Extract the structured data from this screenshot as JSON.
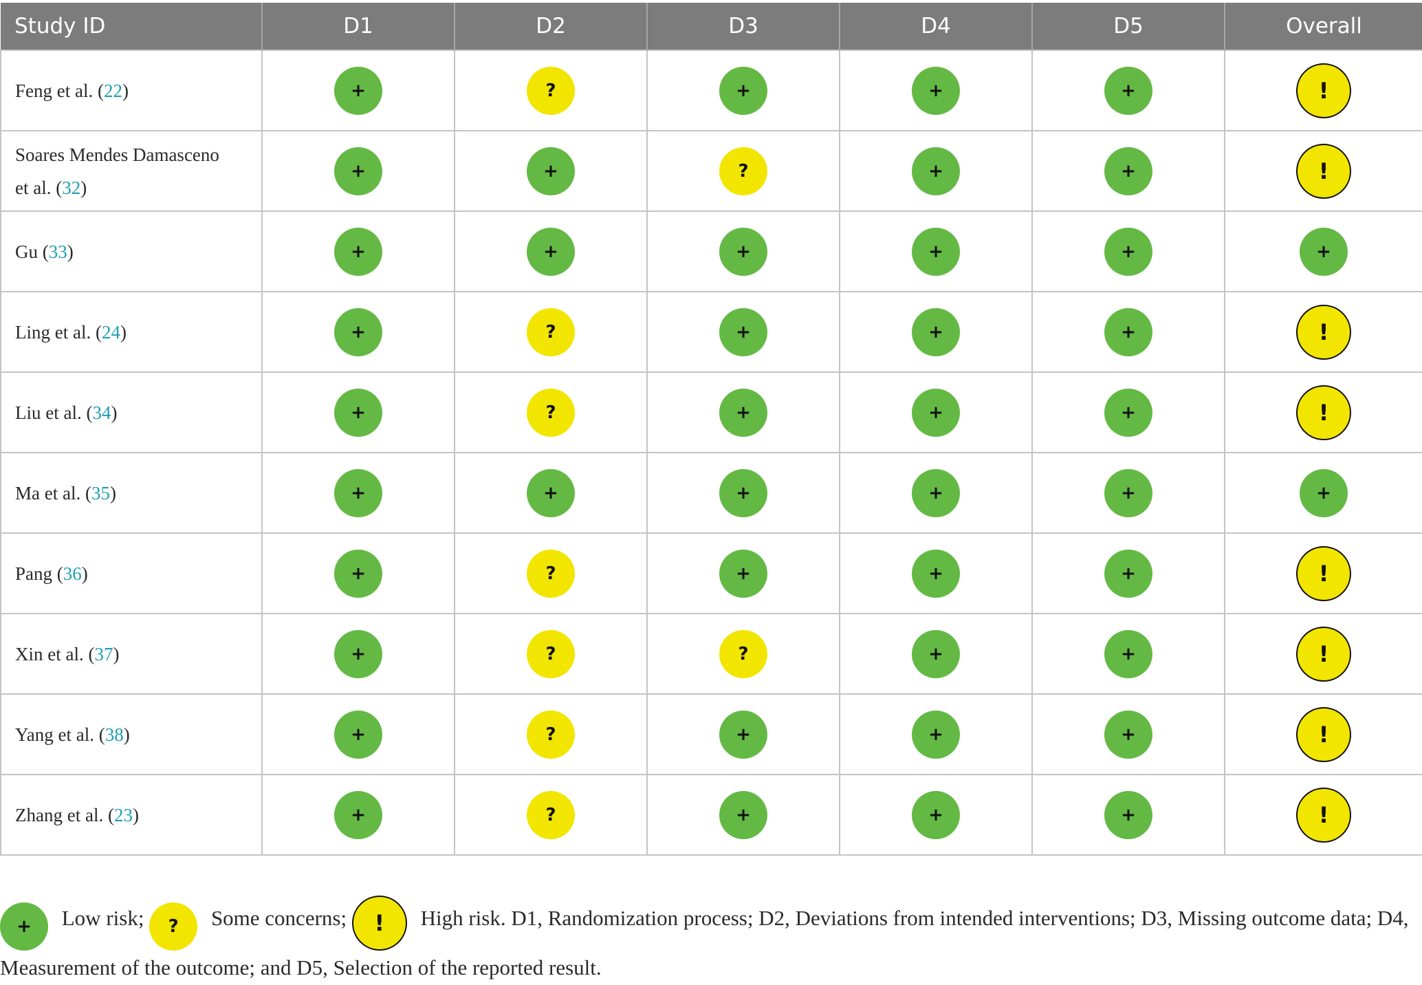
{
  "header": [
    "Study ID",
    "D1",
    "D2",
    "D3",
    "D4",
    "D5",
    "Overall"
  ],
  "glyphs": {
    "low": "+",
    "some": "?",
    "high": "!"
  },
  "colors": {
    "header_bg": "#7c7c7c",
    "low": "#63b944",
    "some": "#f2e500",
    "high": "#f2e500",
    "ref_link": "#1c9fb5"
  },
  "rows": [
    {
      "study_lines": [
        "Feng et al. ("
      ],
      "ref": "22",
      "tail": ")",
      "ratings": [
        "low",
        "some",
        "low",
        "low",
        "low",
        "high"
      ]
    },
    {
      "study_lines": [
        "Soares Mendes Damasceno",
        "et al. ("
      ],
      "ref": "32",
      "tail": ")",
      "ratings": [
        "low",
        "low",
        "some",
        "low",
        "low",
        "high"
      ]
    },
    {
      "study_lines": [
        "Gu ("
      ],
      "ref": "33",
      "tail": ")",
      "ratings": [
        "low",
        "low",
        "low",
        "low",
        "low",
        "low"
      ]
    },
    {
      "study_lines": [
        "Ling et al. ("
      ],
      "ref": "24",
      "tail": ")",
      "ratings": [
        "low",
        "some",
        "low",
        "low",
        "low",
        "high"
      ]
    },
    {
      "study_lines": [
        "Liu et al. ("
      ],
      "ref": "34",
      "tail": ")",
      "ratings": [
        "low",
        "some",
        "low",
        "low",
        "low",
        "high"
      ]
    },
    {
      "study_lines": [
        "Ma et al. ("
      ],
      "ref": "35",
      "tail": ")",
      "ratings": [
        "low",
        "low",
        "low",
        "low",
        "low",
        "low"
      ]
    },
    {
      "study_lines": [
        "Pang ("
      ],
      "ref": "36",
      "tail": ")",
      "ratings": [
        "low",
        "some",
        "low",
        "low",
        "low",
        "high"
      ]
    },
    {
      "study_lines": [
        "Xin et al. ("
      ],
      "ref": "37",
      "tail": ")",
      "ratings": [
        "low",
        "some",
        "some",
        "low",
        "low",
        "high"
      ]
    },
    {
      "study_lines": [
        "Yang et al. ("
      ],
      "ref": "38",
      "tail": ")",
      "ratings": [
        "low",
        "some",
        "low",
        "low",
        "low",
        "high"
      ]
    },
    {
      "study_lines": [
        "Zhang et al. ("
      ],
      "ref": "23",
      "tail": ")",
      "ratings": [
        "low",
        "some",
        "low",
        "low",
        "low",
        "high"
      ]
    }
  ],
  "legend": {
    "low_label": " Low risk;",
    "some_label": " Some concerns;",
    "rest": " High risk. D1, Randomization process; D2, Deviations from intended interventions; D3, Missing outcome data; D4, Measurement of the outcome; and D5, Selection of the reported result."
  }
}
